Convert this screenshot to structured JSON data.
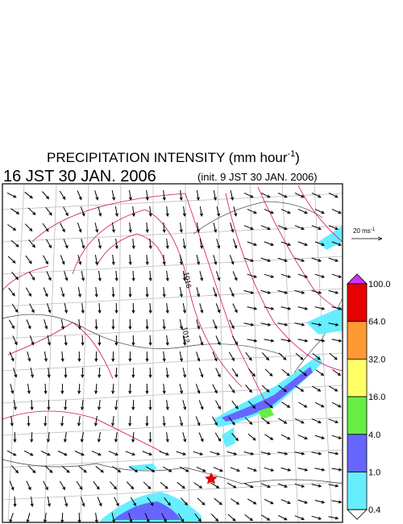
{
  "header": {
    "title": "PRECIPITATION INTENSITY (mm hour",
    "title_exponent": "-1",
    "title_close": ")",
    "valid_time": "16 JST 30 JAN. 2006",
    "init_time": "(init. 9 JST 30 JAN. 2006)"
  },
  "wind_reference": {
    "label": "20 ms",
    "exponent": "-1"
  },
  "contour_labels": [
    "1012",
    "1016"
  ],
  "colorbar": {
    "labels": [
      "100.0",
      "64.0",
      "32.0",
      "16.0",
      "4.0",
      "1.0",
      "0.4"
    ],
    "colors": [
      "#e60000",
      "#ff9933",
      "#ffff66",
      "#66ee44",
      "#6666ff",
      "#66eeff"
    ],
    "over_color": "#cc33ff",
    "under_color": "#ffffff"
  }
}
